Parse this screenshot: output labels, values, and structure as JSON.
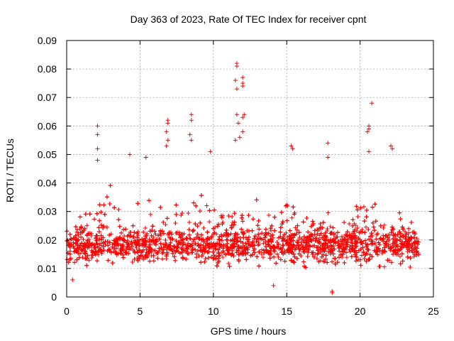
{
  "chart_data": {
    "type": "scatter",
    "title": "Day 363 of 2023, Rate Of TEC Index for receiver cpnt",
    "xlabel": "GPS time / hours",
    "ylabel": "ROTI / TECUs",
    "xlim": [
      0,
      25
    ],
    "ylim": [
      0,
      0.09
    ],
    "xticks": [
      0,
      5,
      10,
      15,
      20,
      25
    ],
    "xtick_labels": [
      "0",
      "5",
      "10",
      "15",
      "20",
      "25"
    ],
    "yticks": [
      0,
      0.01,
      0.02,
      0.03,
      0.04,
      0.05,
      0.06,
      0.07,
      0.08,
      0.09
    ],
    "ytick_labels": [
      "0",
      "0.01",
      "0.02",
      "0.03",
      "0.04",
      "0.05",
      "0.06",
      "0.07",
      "0.08",
      "0.09"
    ],
    "grid": true,
    "marker": "+",
    "marker_color": "#ff0000",
    "series": [
      {
        "name": "ROTI",
        "x_range": [
          0,
          24
        ],
        "typical_band": [
          0.008,
          0.03
        ],
        "notable_points": [
          {
            "x": 2.1,
            "y": 0.06
          },
          {
            "x": 2.1,
            "y": 0.057
          },
          {
            "x": 2.1,
            "y": 0.052
          },
          {
            "x": 2.1,
            "y": 0.048
          },
          {
            "x": 4.3,
            "y": 0.05
          },
          {
            "x": 5.4,
            "y": 0.049
          },
          {
            "x": 6.9,
            "y": 0.062
          },
          {
            "x": 6.9,
            "y": 0.061
          },
          {
            "x": 6.8,
            "y": 0.058
          },
          {
            "x": 6.9,
            "y": 0.055
          },
          {
            "x": 6.8,
            "y": 0.053
          },
          {
            "x": 8.5,
            "y": 0.064
          },
          {
            "x": 8.5,
            "y": 0.062
          },
          {
            "x": 8.4,
            "y": 0.057
          },
          {
            "x": 8.5,
            "y": 0.055
          },
          {
            "x": 9.8,
            "y": 0.051
          },
          {
            "x": 11.6,
            "y": 0.082
          },
          {
            "x": 11.6,
            "y": 0.081
          },
          {
            "x": 11.5,
            "y": 0.076
          },
          {
            "x": 11.6,
            "y": 0.073
          },
          {
            "x": 12.0,
            "y": 0.077
          },
          {
            "x": 12.0,
            "y": 0.075
          },
          {
            "x": 12.0,
            "y": 0.074
          },
          {
            "x": 11.6,
            "y": 0.064
          },
          {
            "x": 12.1,
            "y": 0.064
          },
          {
            "x": 12.0,
            "y": 0.063
          },
          {
            "x": 11.7,
            "y": 0.061
          },
          {
            "x": 12.0,
            "y": 0.058
          },
          {
            "x": 11.8,
            "y": 0.056
          },
          {
            "x": 11.5,
            "y": 0.055
          },
          {
            "x": 15.3,
            "y": 0.053
          },
          {
            "x": 15.4,
            "y": 0.052
          },
          {
            "x": 17.8,
            "y": 0.054
          },
          {
            "x": 17.8,
            "y": 0.049
          },
          {
            "x": 20.8,
            "y": 0.068
          },
          {
            "x": 20.6,
            "y": 0.06
          },
          {
            "x": 20.6,
            "y": 0.059
          },
          {
            "x": 20.5,
            "y": 0.058
          },
          {
            "x": 20.6,
            "y": 0.051
          },
          {
            "x": 22.1,
            "y": 0.053
          },
          {
            "x": 22.2,
            "y": 0.052
          },
          {
            "x": 18.1,
            "y": 0.002
          },
          {
            "x": 18.1,
            "y": 0.0015
          },
          {
            "x": 14.1,
            "y": 0.004
          },
          {
            "x": 0.4,
            "y": 0.006
          }
        ]
      }
    ]
  }
}
